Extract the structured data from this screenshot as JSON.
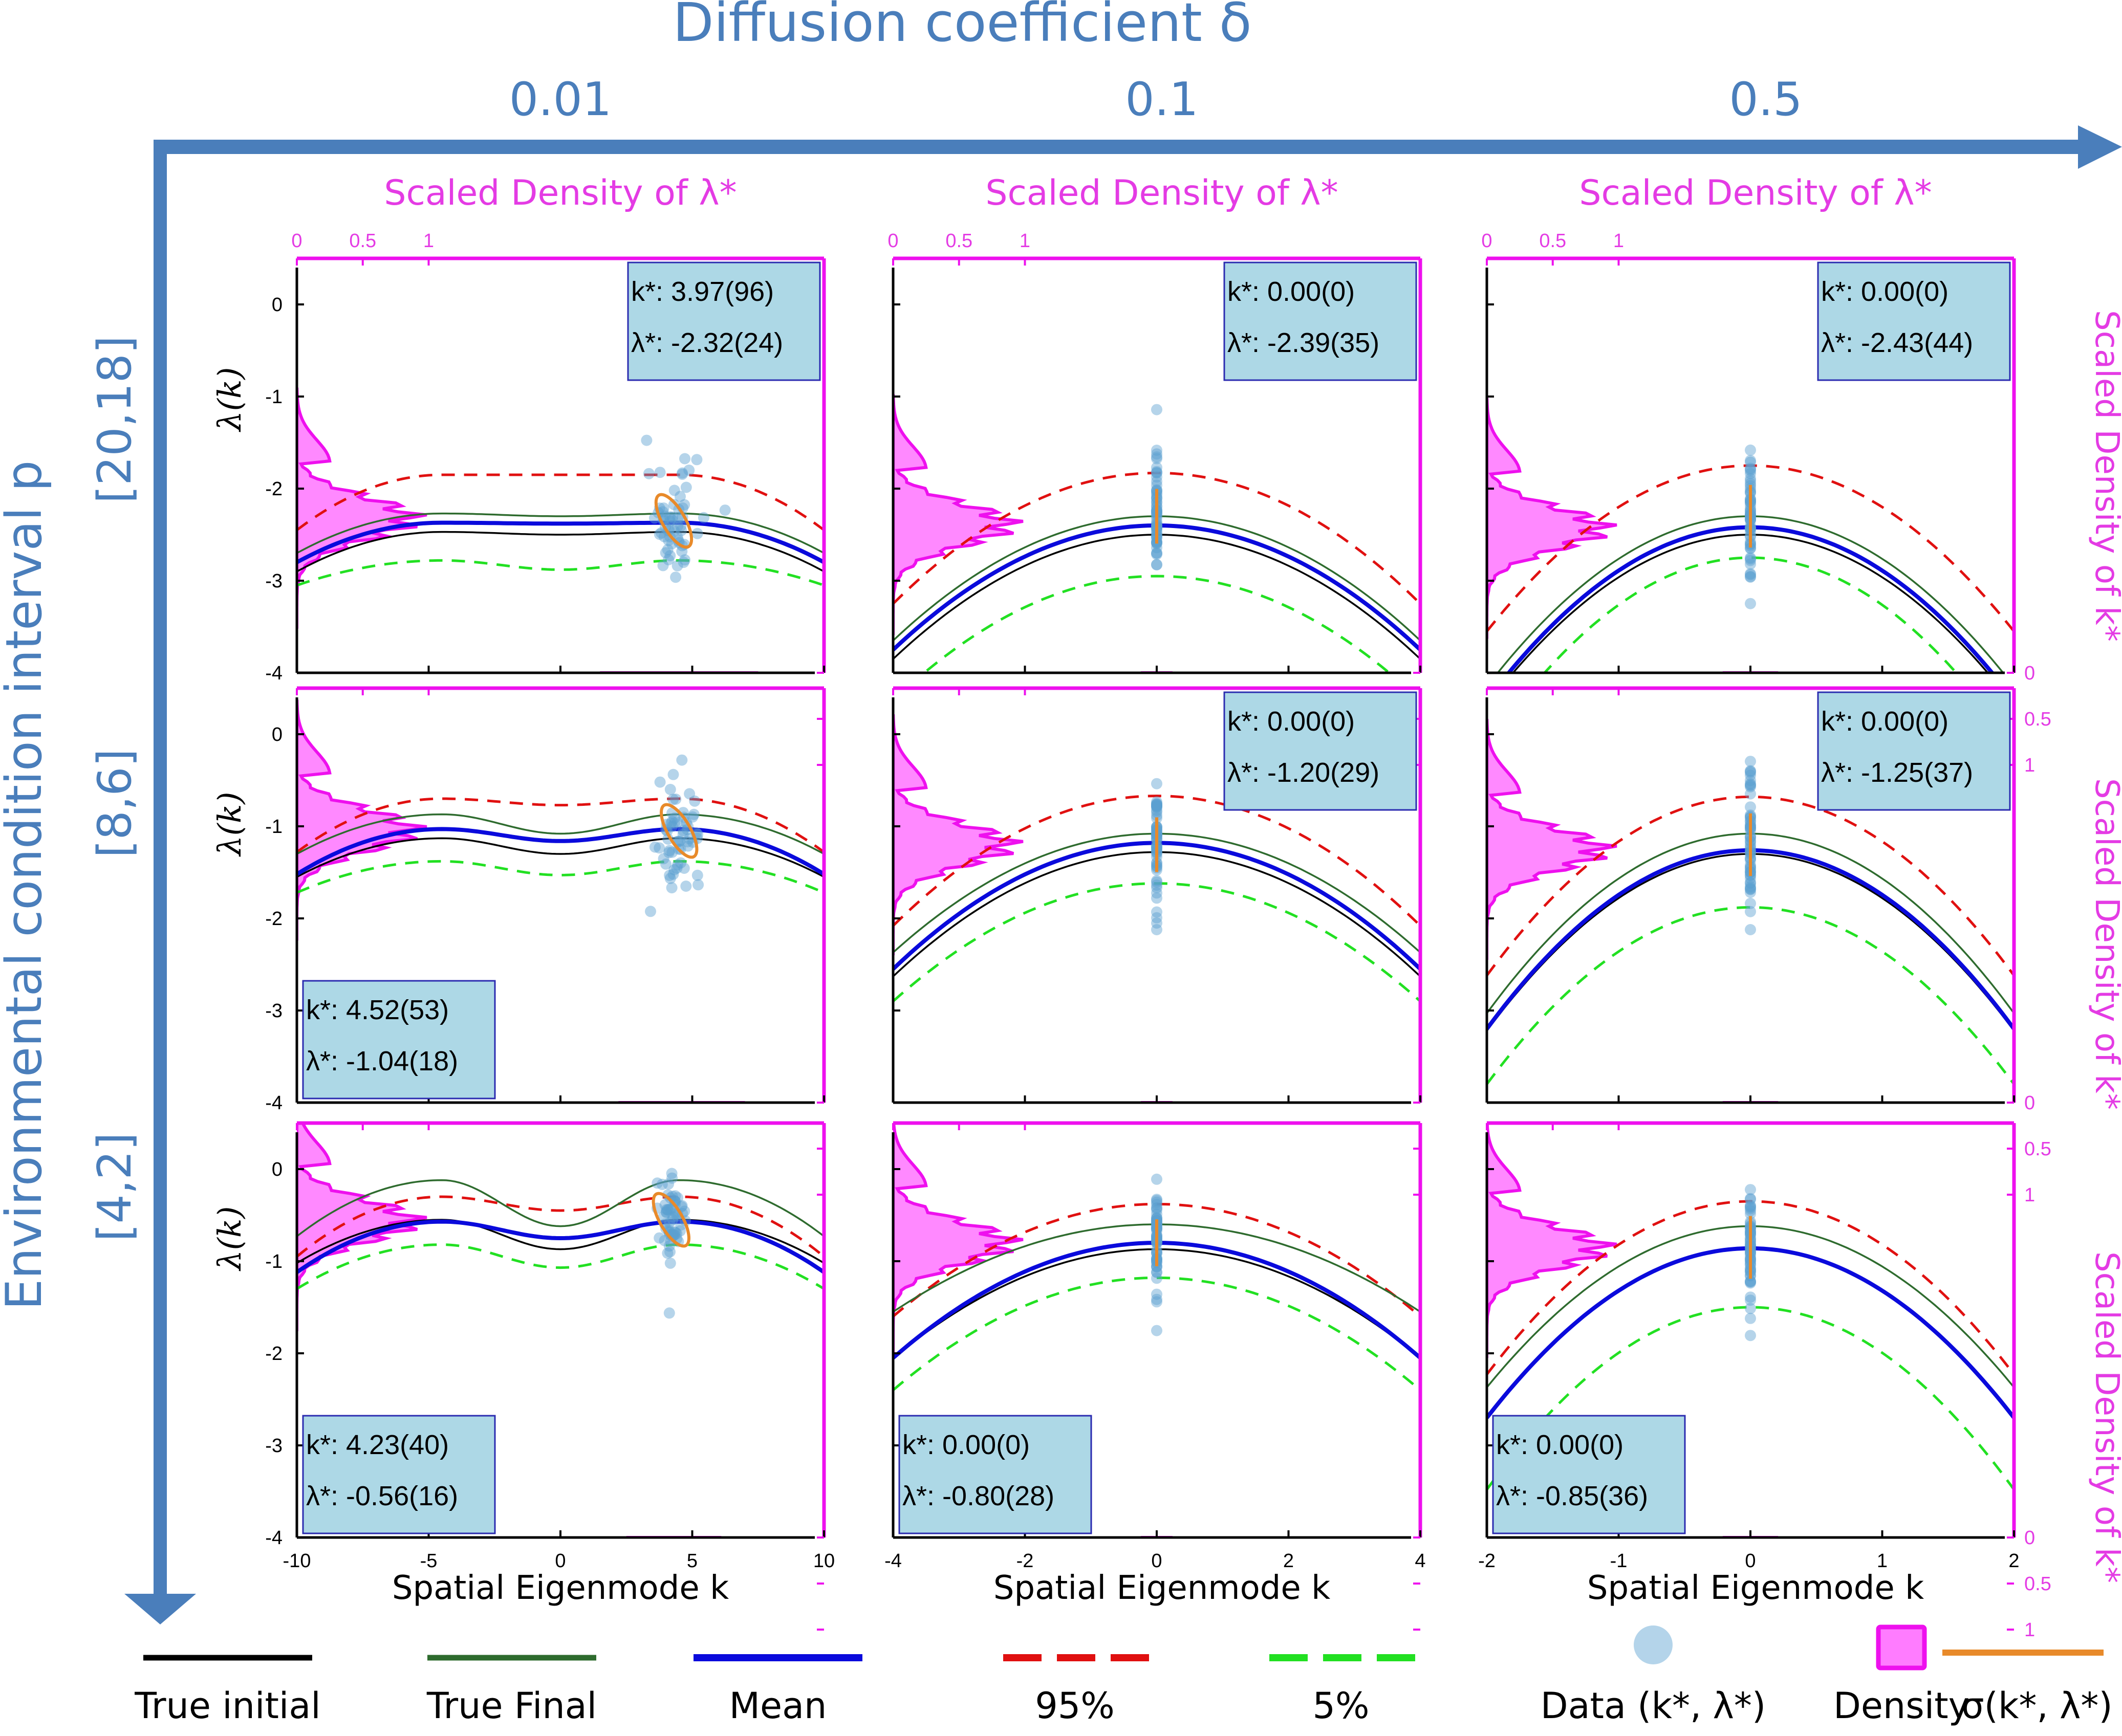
{
  "header": {
    "x_axis_title": "Diffusion coefficient δ",
    "y_axis_title": "Environmental condition interval p",
    "columns": [
      "0.01",
      "0.1",
      "0.5"
    ],
    "rows": [
      "[20,18]",
      "[8,6]",
      "[4,2]"
    ],
    "top_density_label": "Scaled Density of λ*",
    "right_density_label": "Scaled Density of k*",
    "density_ticks": [
      "0",
      "0.5",
      "1"
    ],
    "ylabel": "λ(k)",
    "xlabel": "Spatial Eigenmode k"
  },
  "colors": {
    "axis_arrow": "#4a7ebb",
    "true_initial": "#000000",
    "true_final": "#2e6b2e",
    "mean": "#0a0adc",
    "p95": "#e01010",
    "p5": "#22e022",
    "data": "#5aa0d0",
    "density_fill": "#ff7cff",
    "density_edge": "#ee10ee",
    "sigma": "#e88a2a",
    "stat_box": "#add8e6"
  },
  "legend": [
    {
      "key": "true_initial",
      "label": "True initial",
      "style": "solid"
    },
    {
      "key": "true_final",
      "label": "True Final",
      "style": "solid"
    },
    {
      "key": "mean",
      "label": "Mean",
      "style": "solid-thick"
    },
    {
      "key": "p95",
      "label": "95%",
      "style": "dashed"
    },
    {
      "key": "p5",
      "label": "5%",
      "style": "dashed"
    },
    {
      "key": "data",
      "label": "Data (k*, λ*)",
      "style": "dot"
    },
    {
      "key": "density",
      "label": "Density",
      "style": "patch"
    },
    {
      "key": "sigma",
      "label": "σ(k*, λ*)",
      "style": "solid"
    }
  ],
  "chart_data": [
    {
      "type": "line",
      "row": 0,
      "col": 0,
      "delta": "0.01",
      "p": "[20,18]",
      "xlim": [
        -10,
        10
      ],
      "ylim": [
        -4,
        0.5
      ],
      "xticks": [
        "-10",
        "-5",
        "0",
        "5",
        "10"
      ],
      "yticks": [
        "-4",
        "-3",
        "-2",
        "-1",
        "0"
      ],
      "stat_box": {
        "position": "top-right",
        "k_star": "k*: 3.97(96)",
        "lambda_star": "λ*: -2.32(24)"
      },
      "k_star_mean": 3.97,
      "lambda_star_mean": -2.32,
      "curve_shape": "double-hump",
      "series": {
        "true_initial": {
          "peak": -2.47,
          "trough": -2.5,
          "edge": -2.9
        },
        "true_final": {
          "peak": -2.27,
          "trough": -2.3,
          "edge": -2.7
        },
        "mean": {
          "peak": -2.37,
          "trough": -2.38,
          "edge": -2.8
        },
        "p95": {
          "peak": -1.85,
          "trough": -1.85,
          "edge": -2.45
        },
        "p5": {
          "peak": -2.78,
          "trough": -2.88,
          "edge": -3.05
        }
      },
      "scatter_center": [
        4.3,
        -2.35
      ],
      "scatter_spread": [
        1.0,
        0.3
      ],
      "density_k_center": 4.5,
      "density_k_width": 1.0
    },
    {
      "type": "line",
      "row": 0,
      "col": 1,
      "delta": "0.1",
      "p": "[20,18]",
      "xlim": [
        -4,
        4
      ],
      "ylim": [
        -4,
        0.5
      ],
      "xticks": [
        "-4",
        "-2",
        "0",
        "2",
        "4"
      ],
      "yticks": [
        "-4",
        "-3",
        "-2",
        "-1",
        "0"
      ],
      "stat_box": {
        "position": "top-right",
        "k_star": "k*: 0.00(0)",
        "lambda_star": "λ*: -2.39(35)"
      },
      "k_star_mean": 0.0,
      "lambda_star_mean": -2.39,
      "curve_shape": "parabola",
      "series": {
        "true_initial": {
          "peak": -2.5,
          "edge": -3.85
        },
        "true_final": {
          "peak": -2.3,
          "edge": -3.65
        },
        "mean": {
          "peak": -2.4,
          "edge": -3.75
        },
        "p95": {
          "peak": -1.83,
          "edge": -3.25
        },
        "p5": {
          "peak": -2.95,
          "edge": -4.3
        }
      },
      "scatter_center": [
        0,
        -2.3
      ],
      "scatter_spread": [
        0,
        0.35
      ],
      "density_k_center": 0,
      "density_k_width": 0.08
    },
    {
      "type": "line",
      "row": 0,
      "col": 2,
      "delta": "0.5",
      "p": "[20,18]",
      "xlim": [
        -2,
        2
      ],
      "ylim": [
        -4,
        0.5
      ],
      "xticks": [
        "-2",
        "-1",
        "0",
        "1",
        "2"
      ],
      "yticks": [
        "-4",
        "-3",
        "-2",
        "-1",
        "0"
      ],
      "stat_box": {
        "position": "top-right",
        "k_star": "k*: 0.00(0)",
        "lambda_star": "λ*: -2.43(44)"
      },
      "k_star_mean": 0.0,
      "lambda_star_mean": -2.43,
      "curve_shape": "parabola",
      "series": {
        "true_initial": {
          "peak": -2.5,
          "edge": -4.35
        },
        "true_final": {
          "peak": -2.3,
          "edge": -4.15
        },
        "mean": {
          "peak": -2.42,
          "edge": -4.3
        },
        "p95": {
          "peak": -1.75,
          "edge": -3.55
        },
        "p5": {
          "peak": -2.75,
          "edge": -4.8
        }
      },
      "scatter_center": [
        0,
        -2.3
      ],
      "scatter_spread": [
        0,
        0.4
      ],
      "density_k_center": 0,
      "density_k_width": 0.07
    },
    {
      "type": "line",
      "row": 1,
      "col": 0,
      "delta": "0.01",
      "p": "[8,6]",
      "xlim": [
        -10,
        10
      ],
      "ylim": [
        -4,
        0.5
      ],
      "xticks": [
        "-10",
        "-5",
        "0",
        "5",
        "10"
      ],
      "yticks": [
        "-4",
        "-3",
        "-2",
        "-1",
        "0"
      ],
      "stat_box": {
        "position": "bottom-left",
        "k_star": "k*: 4.52(53)",
        "lambda_star": "λ*: -1.04(18)"
      },
      "k_star_mean": 4.52,
      "lambda_star_mean": -1.04,
      "curve_shape": "double-hump",
      "series": {
        "true_initial": {
          "peak": -1.13,
          "trough": -1.3,
          "edge": -1.55
        },
        "true_final": {
          "peak": -0.87,
          "trough": -1.08,
          "edge": -1.3
        },
        "mean": {
          "peak": -1.03,
          "trough": -1.16,
          "edge": -1.52
        },
        "p95": {
          "peak": -0.7,
          "trough": -0.77,
          "edge": -1.28
        },
        "p5": {
          "peak": -1.38,
          "trough": -1.53,
          "edge": -1.72
        }
      },
      "scatter_center": [
        4.5,
        -1.05
      ],
      "scatter_spread": [
        0.8,
        0.25
      ],
      "density_k_center": 4.6,
      "density_k_width": 0.8
    },
    {
      "type": "line",
      "row": 1,
      "col": 1,
      "delta": "0.1",
      "p": "[8,6]",
      "xlim": [
        -4,
        4
      ],
      "ylim": [
        -4,
        0.5
      ],
      "xticks": [
        "-4",
        "-2",
        "0",
        "2",
        "4"
      ],
      "yticks": [
        "-4",
        "-3",
        "-2",
        "-1",
        "0"
      ],
      "stat_box": {
        "position": "top-right",
        "k_star": "k*: 0.00(0)",
        "lambda_star": "λ*: -1.20(29)"
      },
      "k_star_mean": 0.0,
      "lambda_star_mean": -1.2,
      "curve_shape": "parabola",
      "series": {
        "true_initial": {
          "peak": -1.28,
          "edge": -2.63
        },
        "true_final": {
          "peak": -1.08,
          "edge": -2.37
        },
        "mean": {
          "peak": -1.18,
          "edge": -2.55
        },
        "p95": {
          "peak": -0.67,
          "edge": -2.08
        },
        "p5": {
          "peak": -1.62,
          "edge": -2.9
        }
      },
      "scatter_center": [
        0,
        -1.2
      ],
      "scatter_spread": [
        0,
        0.35
      ],
      "density_k_center": 0,
      "density_k_width": 0.08
    },
    {
      "type": "line",
      "row": 1,
      "col": 2,
      "delta": "0.5",
      "p": "[8,6]",
      "xlim": [
        -2,
        2
      ],
      "ylim": [
        -4,
        0.5
      ],
      "xticks": [
        "-2",
        "-1",
        "0",
        "1",
        "2"
      ],
      "yticks": [
        "-4",
        "-3",
        "-2",
        "-1",
        "0"
      ],
      "stat_box": {
        "position": "top-right",
        "k_star": "k*: 0.00(0)",
        "lambda_star": "λ*: -1.25(37)"
      },
      "k_star_mean": 0.0,
      "lambda_star_mean": -1.25,
      "curve_shape": "parabola",
      "series": {
        "true_initial": {
          "peak": -1.3,
          "edge": -3.22
        },
        "true_final": {
          "peak": -1.08,
          "edge": -3.03
        },
        "mean": {
          "peak": -1.26,
          "edge": -3.2
        },
        "p95": {
          "peak": -0.68,
          "edge": -2.62
        },
        "p5": {
          "peak": -1.88,
          "edge": -3.8
        }
      },
      "scatter_center": [
        0,
        -1.2
      ],
      "scatter_spread": [
        0,
        0.4
      ],
      "density_k_center": 0,
      "density_k_width": 0.07
    },
    {
      "type": "line",
      "row": 2,
      "col": 0,
      "delta": "0.01",
      "p": "[4,2]",
      "xlim": [
        -10,
        10
      ],
      "ylim": [
        -4,
        0.5
      ],
      "xticks": [
        "-10",
        "-5",
        "0",
        "5",
        "10"
      ],
      "yticks": [
        "-4",
        "-3",
        "-2",
        "-1",
        "0"
      ],
      "stat_box": {
        "position": "bottom-left",
        "k_star": "k*: 4.23(40)",
        "lambda_star": "λ*: -0.56(16)"
      },
      "k_star_mean": 4.23,
      "lambda_star_mean": -0.56,
      "curve_shape": "double-hump",
      "series": {
        "true_initial": {
          "peak": -0.55,
          "trough": -0.87,
          "edge": -1.02
        },
        "true_final": {
          "peak": -0.12,
          "trough": -0.62,
          "edge": -0.73
        },
        "mean": {
          "peak": -0.57,
          "trough": -0.75,
          "edge": -1.12
        },
        "p95": {
          "peak": -0.3,
          "trough": -0.45,
          "edge": -0.95
        },
        "p5": {
          "peak": -0.82,
          "trough": -1.07,
          "edge": -1.3
        }
      },
      "scatter_center": [
        4.2,
        -0.55
      ],
      "scatter_spread": [
        0.6,
        0.25
      ],
      "density_k_center": 4.3,
      "density_k_width": 0.6
    },
    {
      "type": "line",
      "row": 2,
      "col": 1,
      "delta": "0.1",
      "p": "[4,2]",
      "xlim": [
        -4,
        4
      ],
      "ylim": [
        -4,
        0.5
      ],
      "xticks": [
        "-4",
        "-2",
        "0",
        "2",
        "4"
      ],
      "yticks": [
        "-4",
        "-3",
        "-2",
        "-1",
        "0"
      ],
      "stat_box": {
        "position": "bottom-left",
        "k_star": "k*: 0.00(0)",
        "lambda_star": "λ*: -0.80(28)"
      },
      "k_star_mean": 0.0,
      "lambda_star_mean": -0.8,
      "curve_shape": "parabola",
      "series": {
        "true_initial": {
          "peak": -0.87,
          "edge": -2.05
        },
        "true_final": {
          "peak": -0.6,
          "edge": -1.55
        },
        "mean": {
          "peak": -0.8,
          "edge": -2.05
        },
        "p95": {
          "peak": -0.38,
          "edge": -1.6
        },
        "p5": {
          "peak": -1.18,
          "edge": -2.4
        }
      },
      "scatter_center": [
        0,
        -0.8
      ],
      "scatter_spread": [
        0,
        0.3
      ],
      "density_k_center": 0,
      "density_k_width": 0.08
    },
    {
      "type": "line",
      "row": 2,
      "col": 2,
      "delta": "0.5",
      "p": "[4,2]",
      "xlim": [
        -2,
        2
      ],
      "ylim": [
        -4,
        0.5
      ],
      "xticks": [
        "-2",
        "-1",
        "0",
        "1",
        "2"
      ],
      "yticks": [
        "-4",
        "-3",
        "-2",
        "-1",
        "0"
      ],
      "stat_box": {
        "position": "bottom-left",
        "k_star": "k*: 0.00(0)",
        "lambda_star": "λ*: -0.85(36)"
      },
      "k_star_mean": 0.0,
      "lambda_star_mean": -0.85,
      "curve_shape": "parabola",
      "series": {
        "true_initial": {
          "peak": -0.87,
          "edge": -2.7
        },
        "true_final": {
          "peak": -0.62,
          "edge": -2.37
        },
        "mean": {
          "peak": -0.86,
          "edge": -2.7
        },
        "p95": {
          "peak": -0.35,
          "edge": -2.23
        },
        "p5": {
          "peak": -1.5,
          "edge": -3.48
        }
      },
      "scatter_center": [
        0,
        -0.85
      ],
      "scatter_spread": [
        0,
        0.4
      ],
      "density_k_center": 0,
      "density_k_width": 0.07
    }
  ]
}
